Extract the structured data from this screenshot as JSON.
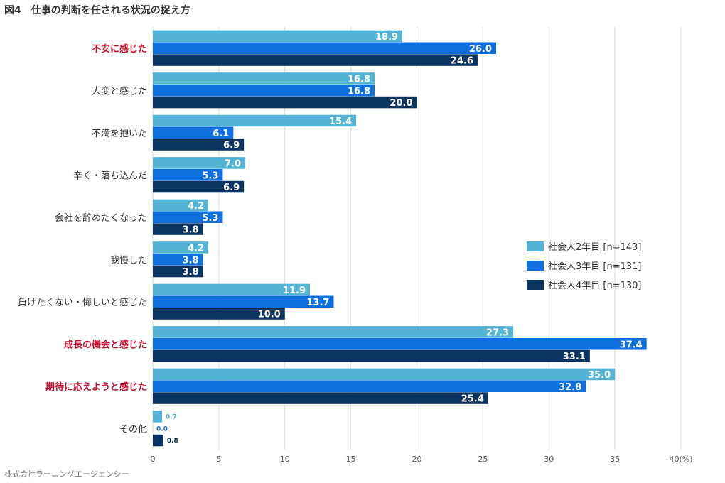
{
  "title": "図4　仕事の判断を任される状況の捉え方",
  "source": "株式会社ラーニングエージェンシー",
  "chart_data": {
    "type": "bar",
    "orientation": "horizontal",
    "categories": [
      "不安に感じた",
      "大変と感じた",
      "不満を抱いた",
      "辛く・落ち込んだ",
      "会社を辞めたくなった",
      "我慢した",
      "負けたくない・悔しいと感じた",
      "成長の機会と感じた",
      "期待に応えようと感じた",
      "その他"
    ],
    "highlight_categories": [
      "不安に感じた",
      "成長の機会と感じた",
      "期待に応えようと感じた"
    ],
    "series": [
      {
        "name": "社会人2年目 [n=143]",
        "color": "#53b4d5",
        "values": [
          18.9,
          16.8,
          15.4,
          7.0,
          4.2,
          4.2,
          11.9,
          27.3,
          35.0,
          0.7
        ]
      },
      {
        "name": "社会人3年目 [n=131]",
        "color": "#0f6fdc",
        "values": [
          26.0,
          16.8,
          6.1,
          5.3,
          5.3,
          3.8,
          13.7,
          37.4,
          32.8,
          0.0
        ]
      },
      {
        "name": "社会人4年目 [n=130]",
        "color": "#0b3560",
        "values": [
          24.6,
          20.0,
          6.9,
          6.9,
          3.8,
          3.8,
          10.0,
          33.1,
          25.4,
          0.8
        ]
      }
    ],
    "xlim": [
      0,
      40
    ],
    "xticks": [
      "0",
      "5",
      "10",
      "15",
      "20",
      "25",
      "30",
      "35",
      "40(%)"
    ],
    "grid": true,
    "legend_position": "right-middle"
  },
  "colors": {
    "highlight": "#c8102e",
    "label": "#333333",
    "grid": "#d9d9d9"
  }
}
